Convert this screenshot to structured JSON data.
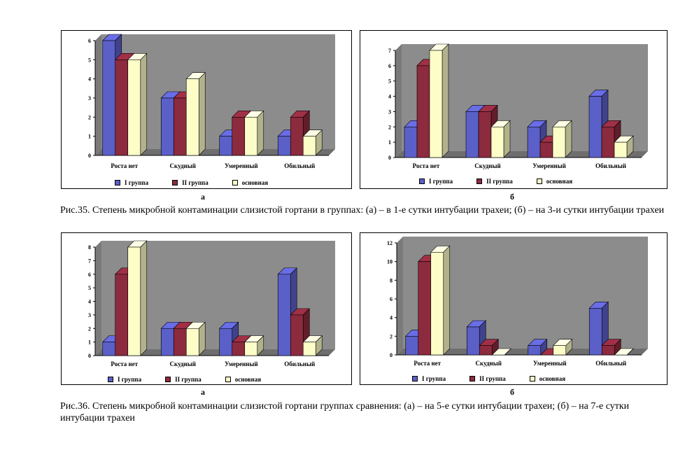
{
  "colors": {
    "series1": "#5b5fc8",
    "series2": "#8c2a3e",
    "series3": "#fdfdc8"
  },
  "legend": [
    "I группа",
    "II группа",
    "основная"
  ],
  "captions": {
    "fig35": "Рис.35. Степень микробной контаминации слизистой гортани в группах: (а) – в 1-е сутки интубации трахеи; (б) – на 3-и сутки интубации трахеи",
    "fig36": "Рис.36. Степень микробной контаминации слизистой гортани группах сравнения: (а) – на 5-е сутки интубации трахеи; (б) – на 7-е сутки интубации трахеи"
  },
  "sublabels": {
    "c1": "а",
    "c2": "б",
    "c3": "а",
    "c4": "б"
  },
  "chart_data": [
    {
      "type": "bar",
      "id": "c1",
      "categories": [
        "Роста нет",
        "Скудный",
        "Умеренный",
        "Обильный"
      ],
      "series": [
        {
          "name": "I группа",
          "values": [
            6,
            3,
            1,
            1
          ]
        },
        {
          "name": "II группа",
          "values": [
            5,
            3,
            2,
            2
          ]
        },
        {
          "name": "основная",
          "values": [
            5,
            4,
            2,
            1
          ]
        }
      ],
      "ylim": [
        0,
        6
      ],
      "yticks": [
        0,
        1,
        2,
        3,
        4,
        5,
        6
      ],
      "grid": false,
      "legend_position": "bottom"
    },
    {
      "type": "bar",
      "id": "c2",
      "categories": [
        "Роста нет",
        "Скудный",
        "Умеренный",
        "Обильный"
      ],
      "series": [
        {
          "name": "I группа",
          "values": [
            2,
            3,
            2,
            4
          ]
        },
        {
          "name": "II группа",
          "values": [
            6,
            3,
            1,
            2
          ]
        },
        {
          "name": "основная",
          "values": [
            7,
            2,
            2,
            1
          ]
        }
      ],
      "ylim": [
        0,
        7
      ],
      "yticks": [
        0,
        1,
        2,
        3,
        4,
        5,
        6,
        7
      ],
      "grid": false,
      "legend_position": "bottom"
    },
    {
      "type": "bar",
      "id": "c3",
      "categories": [
        "Роста нет",
        "Скудный",
        "Умеренный",
        "Обильный"
      ],
      "series": [
        {
          "name": "I группа",
          "values": [
            1,
            2,
            2,
            6
          ]
        },
        {
          "name": "II группа",
          "values": [
            6,
            2,
            1,
            3
          ]
        },
        {
          "name": "основная",
          "values": [
            8,
            2,
            1,
            1
          ]
        }
      ],
      "ylim": [
        0,
        8
      ],
      "yticks": [
        0,
        1,
        2,
        3,
        4,
        5,
        6,
        7,
        8
      ],
      "grid": false,
      "legend_position": "bottom"
    },
    {
      "type": "bar",
      "id": "c4",
      "categories": [
        "Роста нет",
        "Скудный",
        "Умеренный",
        "Обильный"
      ],
      "series": [
        {
          "name": "I группа",
          "values": [
            2,
            3,
            1,
            5
          ]
        },
        {
          "name": "II группа",
          "values": [
            10,
            1,
            0,
            1
          ]
        },
        {
          "name": "основная",
          "values": [
            11,
            0,
            1,
            0
          ]
        }
      ],
      "ylim": [
        0,
        12
      ],
      "yticks": [
        0,
        2,
        4,
        6,
        8,
        10,
        12
      ],
      "grid": false,
      "legend_position": "bottom"
    }
  ]
}
